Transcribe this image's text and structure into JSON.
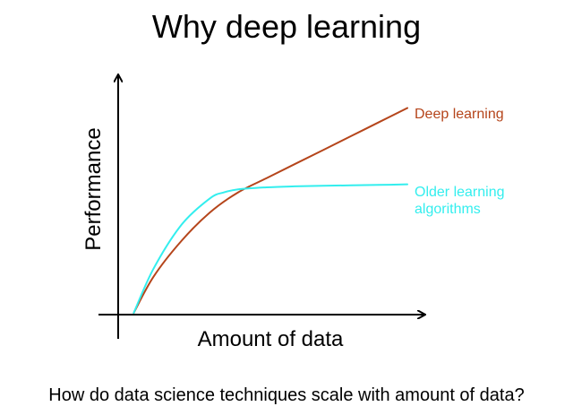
{
  "chart_data": {
    "type": "line",
    "title": "Why deep learning",
    "xlabel": "Amount of data",
    "ylabel": "Performance",
    "grid": false,
    "legend": "inline labels at line ends",
    "xlim": [
      0,
      100
    ],
    "ylim": [
      0,
      100
    ],
    "series": [
      {
        "name": "Deep learning",
        "color": "#b5451b",
        "x": [
          3,
          10,
          20,
          30,
          40,
          50,
          60,
          70,
          80,
          90,
          100
        ],
        "y": [
          0,
          18,
          36,
          50,
          60,
          67,
          74,
          81,
          88,
          95,
          102
        ]
      },
      {
        "name": "Older learning algorithms",
        "color": "#33eeee",
        "x": [
          3,
          10,
          20,
          30,
          35,
          40,
          50,
          60,
          70,
          80,
          90,
          100
        ],
        "y": [
          0,
          22,
          44,
          57,
          60,
          61.5,
          62.5,
          63,
          63.3,
          63.5,
          63.7,
          64
        ]
      }
    ]
  },
  "caption": "How do data science techniques scale with amount of data?"
}
